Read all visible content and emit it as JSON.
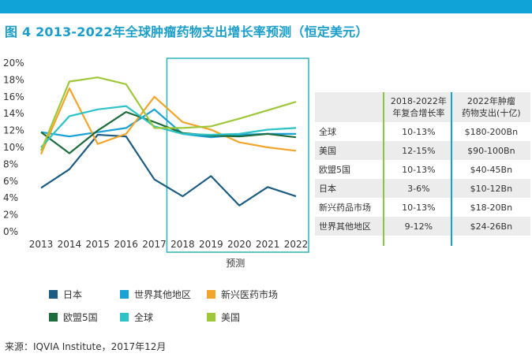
{
  "header": {
    "title": "图 4  2013-2022年全球肿瘤药物支出增长率预测（恒定美元）"
  },
  "chart_data": {
    "type": "line",
    "x": [
      "2013",
      "2014",
      "2015",
      "2016",
      "2017",
      "2018",
      "2019",
      "2020",
      "2021",
      "2022"
    ],
    "ylim": [
      0,
      20
    ],
    "yticks": [
      "0%",
      "2%",
      "4%",
      "6%",
      "8%",
      "10%",
      "12%",
      "14%",
      "16%",
      "18%",
      "20%"
    ],
    "forecast_label": "预测",
    "series": [
      {
        "name": "日本",
        "color": "#1d5d84",
        "values": [
          5.2,
          7.4,
          11.5,
          11.3,
          6.2,
          4.2,
          6.6,
          3.1,
          5.3,
          4.2
        ]
      },
      {
        "name": "世界其他地区",
        "color": "#1aa1d6",
        "values": [
          11.8,
          11.3,
          11.8,
          12.3,
          14.5,
          11.6,
          11.2,
          11.5,
          11.6,
          11.6
        ]
      },
      {
        "name": "新兴医药市场",
        "color": "#f2a52b",
        "values": [
          9.2,
          17.0,
          10.4,
          11.6,
          16.0,
          13.0,
          12.1,
          10.6,
          10.0,
          9.6
        ]
      },
      {
        "name": "欧盟5国",
        "color": "#1e6b3c",
        "values": [
          11.8,
          9.3,
          12.0,
          14.2,
          13.0,
          11.7,
          11.4,
          11.3,
          11.6,
          11.2
        ]
      },
      {
        "name": "全球",
        "color": "#2cc3c7",
        "values": [
          10.0,
          13.7,
          14.5,
          14.9,
          12.5,
          11.6,
          11.5,
          11.6,
          12.1,
          12.3
        ]
      },
      {
        "name": "美国",
        "color": "#9fc73a",
        "values": [
          9.6,
          17.8,
          18.3,
          17.5,
          12.3,
          12.3,
          12.5,
          13.4,
          14.4,
          15.4
        ]
      }
    ],
    "table": {
      "headers": [
        "",
        "2018-2022年\n年复合增长率",
        "2022年肿瘤\n药物支出(十亿)"
      ],
      "rows": [
        [
          "全球",
          "10-13%",
          "$180-200Bn"
        ],
        [
          "美国",
          "12-15%",
          "$90-100Bn"
        ],
        [
          "欧盟5国",
          "10-13%",
          "$40-45Bn"
        ],
        [
          "日本",
          "3-6%",
          "$10-12Bn"
        ],
        [
          "新兴药品市场",
          "10-13%",
          "$18-20Bn"
        ],
        [
          "世界其他地区",
          "9-12%",
          "$24-26Bn"
        ]
      ]
    }
  },
  "source": "来源：IQVIA Institute，2017年12月",
  "colors": {
    "brand": "#0fa3d8",
    "title": "#1b9ec9",
    "forecast_box": "#2bb3b8",
    "table_divider": "#8bc34a"
  }
}
